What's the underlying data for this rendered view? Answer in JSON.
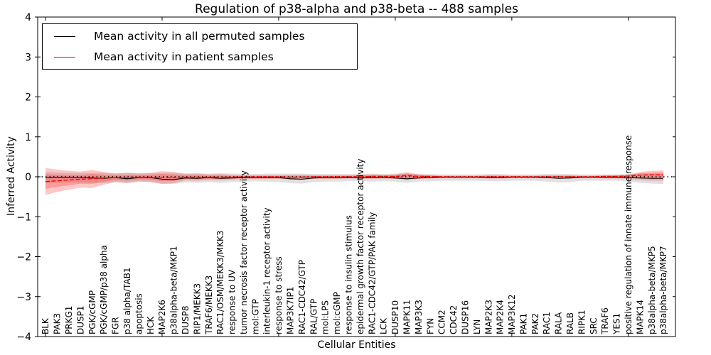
{
  "figure": {
    "title": "Regulation of p38-alpha and p38-beta -- 488 samples",
    "xlabel": "Cellular Entities",
    "ylabel": "Inferred Activity"
  },
  "legend": {
    "entries": [
      {
        "label": "Mean activity in all permuted samples",
        "color": "#000000"
      },
      {
        "label": "Mean activity in patient samples",
        "color": "#ff0000"
      }
    ],
    "position": "upper left"
  },
  "chart_data": {
    "type": "line",
    "title": "Regulation of p38-alpha and p38-beta -- 488 samples",
    "xlabel": "Cellular Entities",
    "ylabel": "Inferred Activity",
    "ylim": [
      -4,
      4
    ],
    "yticks": [
      4,
      3,
      2,
      1,
      0,
      -1,
      -2,
      -3,
      -4
    ],
    "grid": false,
    "legend_position": "upper left",
    "categories": [
      "BLK",
      "PAK3",
      "PRKG1",
      "DUSP1",
      "PGK/cGMP",
      "PGK/cGMP/p38 alpha",
      "FGR",
      "p38 alpha/TAB1",
      "apoptosis",
      "HCK",
      "MAP2K6",
      "p38alpha-beta/MKP1",
      "DUSP8",
      "RIP1/MEKK3",
      "TRAF6/MEKK3",
      "RAC1/OSM/MEKK3/MKK3",
      "response to UV",
      "tumor necrosis factor receptor activity",
      "mol:GTP",
      "interleukin-1 receptor activity",
      "response to stress",
      "MAP3K7IP1",
      "RAC1-CDC42/GTP",
      "RAL/GTP",
      "mol:LPS",
      "mol:cGMP",
      "response to insulin stimulus",
      "epidermal growth factor receptor activity",
      "RAC1-CDC42/GTP/PAK family",
      "LCK",
      "DUSP10",
      "MAPK11",
      "MAP3K3",
      "FYN",
      "CCM2",
      "CDC42",
      "DUSP16",
      "LYN",
      "MAP2K3",
      "MAP2K4",
      "MAP3K12",
      "PAK1",
      "PAK2",
      "RAC1",
      "RALA",
      "RALB",
      "RIPK1",
      "SRC",
      "TRAF6",
      "YES1",
      "positive regulation of innate immune response",
      "MAPK14",
      "p38alpha-beta/MKP5",
      "p38alpha-beta/MKP7"
    ],
    "series": [
      {
        "name": "Mean activity in all permuted samples",
        "color": "#000000",
        "line_style": "solid",
        "band_color": "rgba(0,0,0,0.12)",
        "values": [
          -0.02,
          -0.01,
          -0.01,
          -0.02,
          -0.03,
          -0.04,
          -0.02,
          -0.05,
          -0.02,
          -0.02,
          -0.06,
          -0.07,
          -0.03,
          -0.04,
          -0.02,
          -0.04,
          -0.03,
          -0.02,
          -0.02,
          -0.02,
          -0.02,
          -0.05,
          -0.06,
          -0.03,
          -0.02,
          -0.02,
          -0.02,
          -0.02,
          -0.02,
          -0.02,
          -0.03,
          -0.05,
          -0.03,
          -0.02,
          -0.01,
          -0.01,
          -0.01,
          -0.01,
          -0.02,
          -0.02,
          -0.01,
          -0.01,
          -0.01,
          -0.02,
          -0.04,
          -0.03,
          -0.01,
          -0.01,
          -0.01,
          -0.01,
          -0.02,
          -0.03,
          -0.04,
          -0.04
        ],
        "band_upper": [
          0.12,
          0.11,
          0.1,
          0.1,
          0.1,
          0.1,
          0.09,
          0.1,
          0.09,
          0.09,
          0.1,
          0.1,
          0.09,
          0.09,
          0.08,
          0.09,
          0.08,
          0.08,
          0.07,
          0.08,
          0.08,
          0.08,
          0.08,
          0.07,
          0.07,
          0.07,
          0.07,
          0.07,
          0.08,
          0.07,
          0.08,
          0.08,
          0.07,
          0.07,
          0.06,
          0.06,
          0.06,
          0.06,
          0.07,
          0.07,
          0.06,
          0.06,
          0.06,
          0.07,
          0.07,
          0.07,
          0.06,
          0.06,
          0.06,
          0.06,
          0.07,
          0.08,
          0.08,
          0.08
        ],
        "band_lower": [
          -0.16,
          -0.15,
          -0.14,
          -0.14,
          -0.15,
          -0.16,
          -0.13,
          -0.16,
          -0.13,
          -0.13,
          -0.17,
          -0.18,
          -0.14,
          -0.15,
          -0.13,
          -0.15,
          -0.13,
          -0.12,
          -0.11,
          -0.12,
          -0.13,
          -0.16,
          -0.17,
          -0.13,
          -0.12,
          -0.12,
          -0.11,
          -0.11,
          -0.12,
          -0.11,
          -0.12,
          -0.15,
          -0.12,
          -0.11,
          -0.1,
          -0.1,
          -0.1,
          -0.1,
          -0.11,
          -0.11,
          -0.1,
          -0.1,
          -0.1,
          -0.12,
          -0.14,
          -0.13,
          -0.1,
          -0.1,
          -0.1,
          -0.1,
          -0.12,
          -0.15,
          -0.17,
          -0.18
        ]
      },
      {
        "name": "Mean activity in patient samples",
        "color": "#ff0000",
        "line_style": "dashed",
        "band_color": "rgba(255,0,0,0.22)",
        "values": [
          -0.12,
          -0.1,
          -0.08,
          -0.06,
          -0.05,
          -0.03,
          -0.02,
          -0.02,
          -0.01,
          -0.01,
          -0.02,
          -0.02,
          -0.01,
          -0.01,
          -0.01,
          -0.01,
          -0.01,
          0,
          0,
          0,
          0,
          -0.01,
          -0.01,
          0,
          0,
          0,
          0,
          0,
          0.01,
          0.01,
          0.01,
          0.03,
          0.01,
          0.01,
          0,
          0,
          0,
          0,
          0,
          0,
          0,
          0,
          0,
          0,
          0,
          0,
          0,
          0,
          0.01,
          0.01,
          0.02,
          0.04,
          0.05,
          0.05
        ],
        "band_upper": [
          0.22,
          0.18,
          0.15,
          0.13,
          0.17,
          0.12,
          0.08,
          0.1,
          0.08,
          0.1,
          0.14,
          0.12,
          0.07,
          0.08,
          0.06,
          0.07,
          0.05,
          0.04,
          0.04,
          0.04,
          0.04,
          0.05,
          0.05,
          0.04,
          0.04,
          0.04,
          0.04,
          0.05,
          0.06,
          0.05,
          0.06,
          0.12,
          0.06,
          0.04,
          0.03,
          0.03,
          0.03,
          0.03,
          0.04,
          0.04,
          0.03,
          0.03,
          0.03,
          0.04,
          0.04,
          0.04,
          0.03,
          0.03,
          0.04,
          0.04,
          0.06,
          0.12,
          0.15,
          0.16
        ],
        "band_lower": [
          -0.45,
          -0.38,
          -0.32,
          -0.27,
          -0.28,
          -0.2,
          -0.13,
          -0.15,
          -0.11,
          -0.13,
          -0.18,
          -0.16,
          -0.09,
          -0.1,
          -0.08,
          -0.09,
          -0.07,
          -0.05,
          -0.05,
          -0.05,
          -0.05,
          -0.07,
          -0.07,
          -0.05,
          -0.05,
          -0.05,
          -0.04,
          -0.05,
          -0.05,
          -0.04,
          -0.05,
          -0.08,
          -0.05,
          -0.04,
          -0.03,
          -0.03,
          -0.03,
          -0.03,
          -0.04,
          -0.04,
          -0.03,
          -0.03,
          -0.03,
          -0.04,
          -0.04,
          -0.04,
          -0.03,
          -0.03,
          -0.04,
          -0.04,
          -0.05,
          -0.08,
          -0.1,
          -0.1
        ]
      }
    ],
    "zero_line": {
      "value": 0,
      "style": "dotted",
      "color": "#000000"
    }
  }
}
